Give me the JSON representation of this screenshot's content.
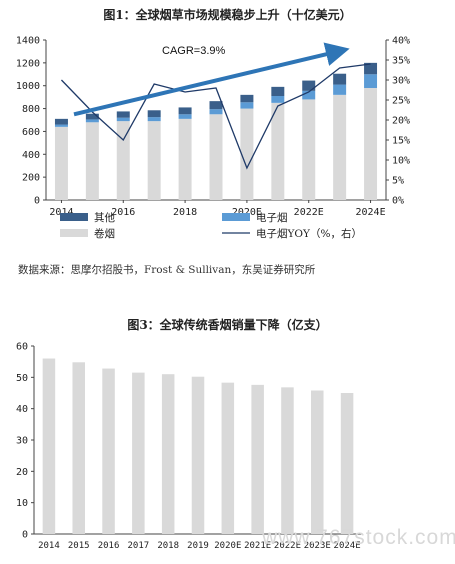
{
  "chart_data": [
    {
      "type": "bar",
      "stacked": true,
      "title": "图1：全球烟草市场规模稳步上升（十亿美元）",
      "categories": [
        "2014",
        "2015",
        "2016",
        "2017",
        "2018",
        "2019",
        "2020E",
        "2021E",
        "2022E",
        "2023E",
        "2024E"
      ],
      "x_tick_labels": [
        "2014",
        "2016",
        "2018",
        "2020E",
        "2022E",
        "2024E"
      ],
      "y_ticks": [
        "0",
        "200",
        "400",
        "600",
        "800",
        "1000",
        "1200",
        "1400"
      ],
      "y2_ticks": [
        "0%",
        "5%",
        "10%",
        "15%",
        "20%",
        "25%",
        "30%",
        "35%",
        "40%"
      ],
      "ylim": [
        0,
        1400
      ],
      "y2lim": [
        0,
        0.4
      ],
      "series": [
        {
          "name": "卷烟",
          "color": "#d9d9d9",
          "values": [
            640,
            680,
            690,
            690,
            710,
            750,
            800,
            850,
            880,
            920,
            980
          ]
        },
        {
          "name": "电子烟",
          "color": "#5b9bd5",
          "values": [
            20,
            25,
            30,
            35,
            40,
            45,
            55,
            60,
            75,
            90,
            120
          ]
        },
        {
          "name": "其他",
          "color": "#3a5f8a",
          "values": [
            50,
            50,
            55,
            60,
            60,
            70,
            65,
            80,
            90,
            95,
            100
          ]
        }
      ],
      "line_series": {
        "name": "电子烟YOY（%，右）",
        "color": "#1f3a68",
        "values": [
          0.3,
          0.22,
          0.15,
          0.29,
          0.27,
          0.28,
          0.08,
          0.235,
          0.27,
          0.33,
          0.34
        ]
      },
      "annotation": "CAGR=3.9%",
      "legend": [
        "其他",
        "电子烟",
        "卷烟",
        "电子烟YOY（%，右）"
      ],
      "source": "数据来源：思摩尔招股书，Frost & Sullivan，东吴证券研究所"
    },
    {
      "type": "bar",
      "title": "图3：全球传统香烟销量下降（亿支）",
      "categories": [
        "2014",
        "2015",
        "2016",
        "2017",
        "2018",
        "2019",
        "2020E",
        "2021E",
        "2022E",
        "2023E",
        "2024E"
      ],
      "values": [
        56,
        54.8,
        52.8,
        51.5,
        51,
        50.2,
        48.3,
        47.6,
        46.8,
        45.8,
        45
      ],
      "y_ticks": [
        "0",
        "10",
        "20",
        "30",
        "40",
        "50",
        "60"
      ],
      "ylim": [
        0,
        60
      ],
      "color": "#d9d9d9"
    }
  ],
  "watermark": "www.767stock.com"
}
